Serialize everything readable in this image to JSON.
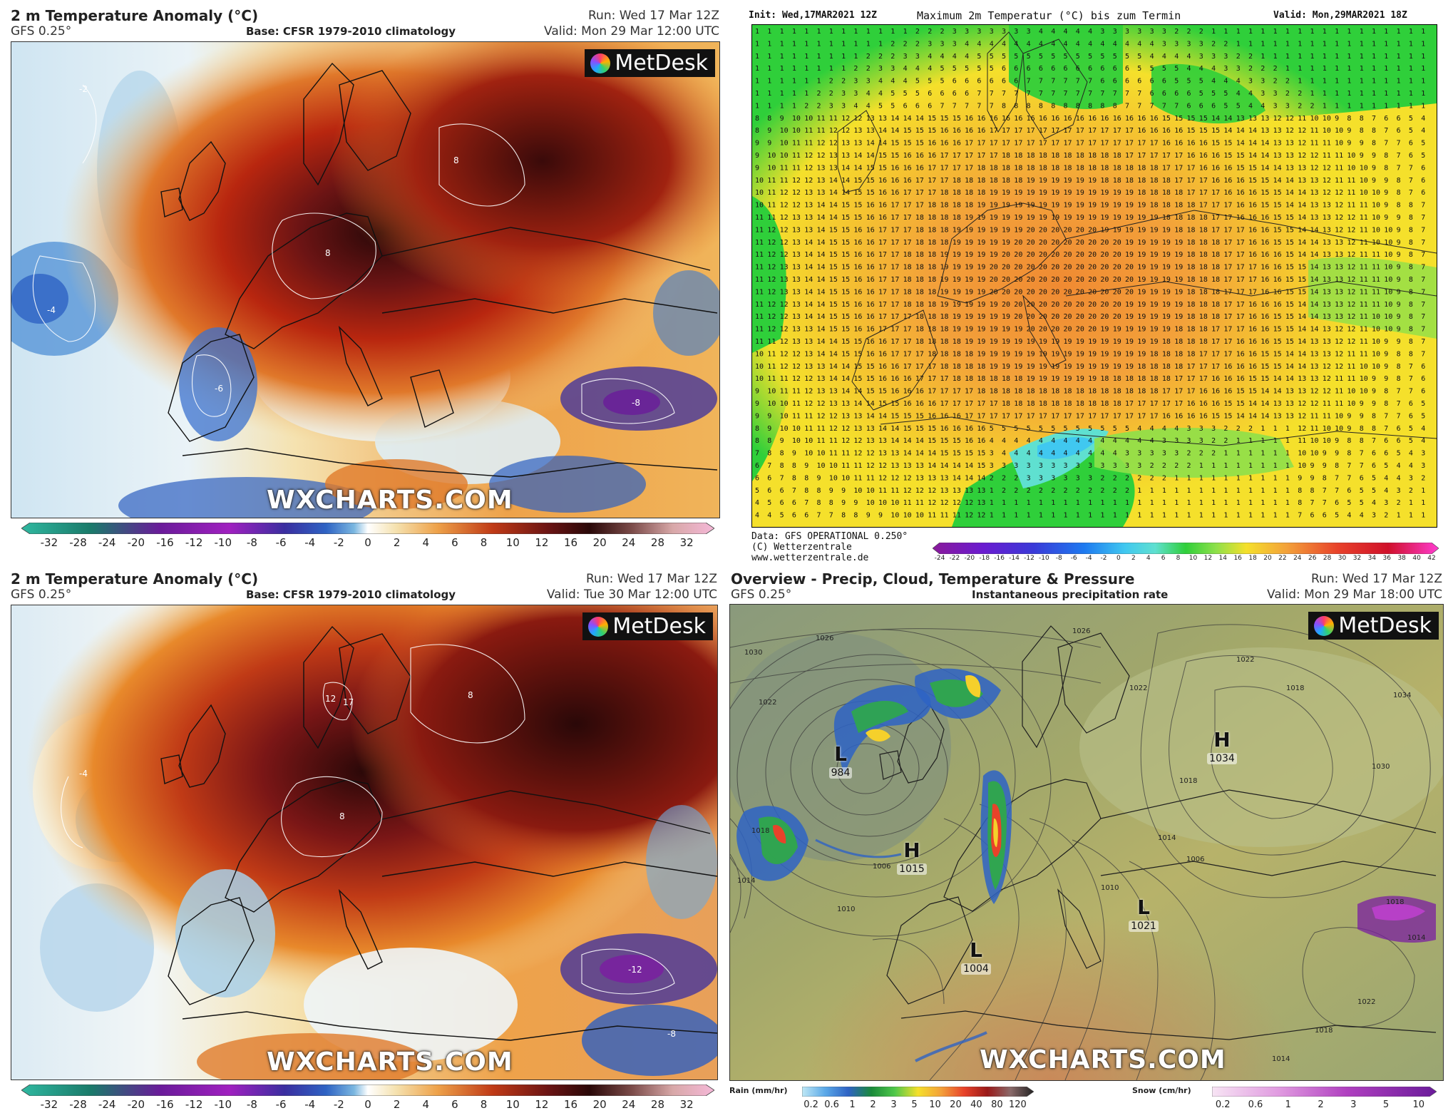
{
  "panel_tl": {
    "title": "2 m Temperature Anomaly (°C)",
    "model": "GFS 0.25°",
    "base": "Base: CFSR 1979-2010 climatology",
    "run": "Run: Wed 17 Mar 12Z",
    "valid": "Valid: Mon 29 Mar 12:00 UTC",
    "logo": "MetDesk",
    "watermark": "WXCHARTS.COM"
  },
  "panel_bl": {
    "title": "2 m Temperature Anomaly (°C)",
    "model": "GFS 0.25°",
    "base": "Base: CFSR 1979-2010 climatology",
    "run": "Run: Wed 17 Mar 12Z",
    "valid": "Valid: Tue 30 Mar 12:00 UTC",
    "logo": "MetDesk",
    "watermark": "WXCHARTS.COM"
  },
  "anomaly_scale": [
    "-32",
    "-28",
    "-24",
    "-20",
    "-16",
    "-12",
    "-10",
    "-8",
    "-6",
    "-4",
    "-2",
    "0",
    "2",
    "4",
    "6",
    "8",
    "10",
    "12",
    "16",
    "20",
    "24",
    "28",
    "32"
  ],
  "panel_tr": {
    "init": "Init: Wed,17MAR2021 12Z",
    "title": "Maximum 2m Temperatur (°C) bis zum Termin",
    "valid": "Valid: Mon,29MAR2021 18Z",
    "footer_line1": "Data: GFS OPERATIONAL 0.250°",
    "footer_line2": "(C) Wetterzentrale",
    "footer_line3": "www.wetterzentrale.de",
    "scale": [
      "-24",
      "-22",
      "-20",
      "-18",
      "-16",
      "-14",
      "-12",
      "-10",
      "-8",
      "-6",
      "-4",
      "-2",
      "0",
      "2",
      "4",
      "6",
      "8",
      "10",
      "12",
      "14",
      "16",
      "18",
      "20",
      "22",
      "24",
      "26",
      "28",
      "30",
      "32",
      "34",
      "36",
      "38",
      "40",
      "42"
    ]
  },
  "panel_br": {
    "title": "Overview - Precip, Cloud, Temperature & Pressure",
    "model": "GFS 0.25°",
    "subtitle": "Instantaneous precipitation rate",
    "run": "Run: Wed 17 Mar 12Z",
    "valid": "Valid: Mon 29 Mar 18:00 UTC",
    "logo": "MetDesk",
    "watermark": "WXCHARTS.COM",
    "rain_label": "Rain (mm/hr)",
    "rain_scale": [
      "0.2",
      "0.6",
      "1",
      "2",
      "3",
      "5",
      "10",
      "20",
      "40",
      "80",
      "120"
    ],
    "snow_label": "Snow (cm/hr)",
    "snow_scale": [
      "0.2",
      "0.6",
      "1",
      "2",
      "3",
      "5",
      "10"
    ],
    "pressure_centers": [
      {
        "type": "L",
        "value": "984"
      },
      {
        "type": "H",
        "value": "1015"
      },
      {
        "type": "H",
        "value": "1034"
      },
      {
        "type": "L",
        "value": "1004"
      },
      {
        "type": "L",
        "value": "1021"
      }
    ],
    "isobar_labels": [
      "1030",
      "1026",
      "1022",
      "1018",
      "1014",
      "1010",
      "1006",
      "1026",
      "1022",
      "1018",
      "1014",
      "1010",
      "1006",
      "1022",
      "1018",
      "1030",
      "1034",
      "1018",
      "1014",
      "1022",
      "1018",
      "1014"
    ]
  },
  "colors": {
    "warm_dark": "#3a0a0a",
    "warm": "#b8260f",
    "orange": "#e8892b",
    "yellow": "#f3d08a",
    "cool_light": "#dfeef6",
    "cool": "#7ab6e0",
    "blue": "#2e63c4",
    "violet": "#4a1d8a",
    "wz_green": "#2fcf3a",
    "wz_yellow": "#f5e02b",
    "wz_orange": "#f3a13a"
  }
}
